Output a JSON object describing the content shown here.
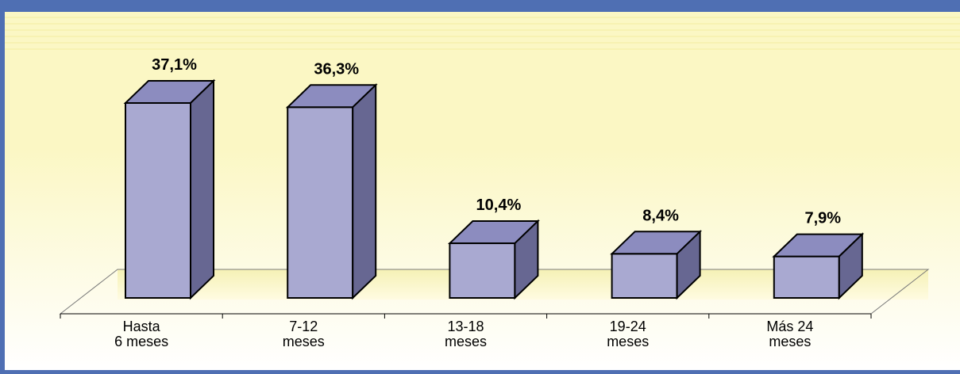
{
  "chart_data": {
    "type": "bar",
    "categories": [
      [
        "Hasta",
        "6 meses"
      ],
      [
        "7-12",
        "meses"
      ],
      [
        "13-18",
        "meses"
      ],
      [
        "19-24",
        "meses"
      ],
      [
        "Más 24",
        "meses"
      ]
    ],
    "values": [
      37.1,
      36.3,
      10.4,
      8.4,
      7.9
    ],
    "value_labels": [
      "37,1%",
      "36,3%",
      "10,4%",
      "8,4%",
      "7,9%"
    ],
    "ylim": [
      0,
      40
    ],
    "style": "3d-column",
    "grid": false,
    "legend": "none"
  },
  "colors": {
    "border": "#4f6fb3",
    "bar_front": "#a9a9d1",
    "bar_top": "#8c8cbf",
    "bar_side": "#676792",
    "floor_stripe": "#f4f0b0",
    "background_top": "#fbf7c4",
    "background_bottom": "#ffffff"
  }
}
